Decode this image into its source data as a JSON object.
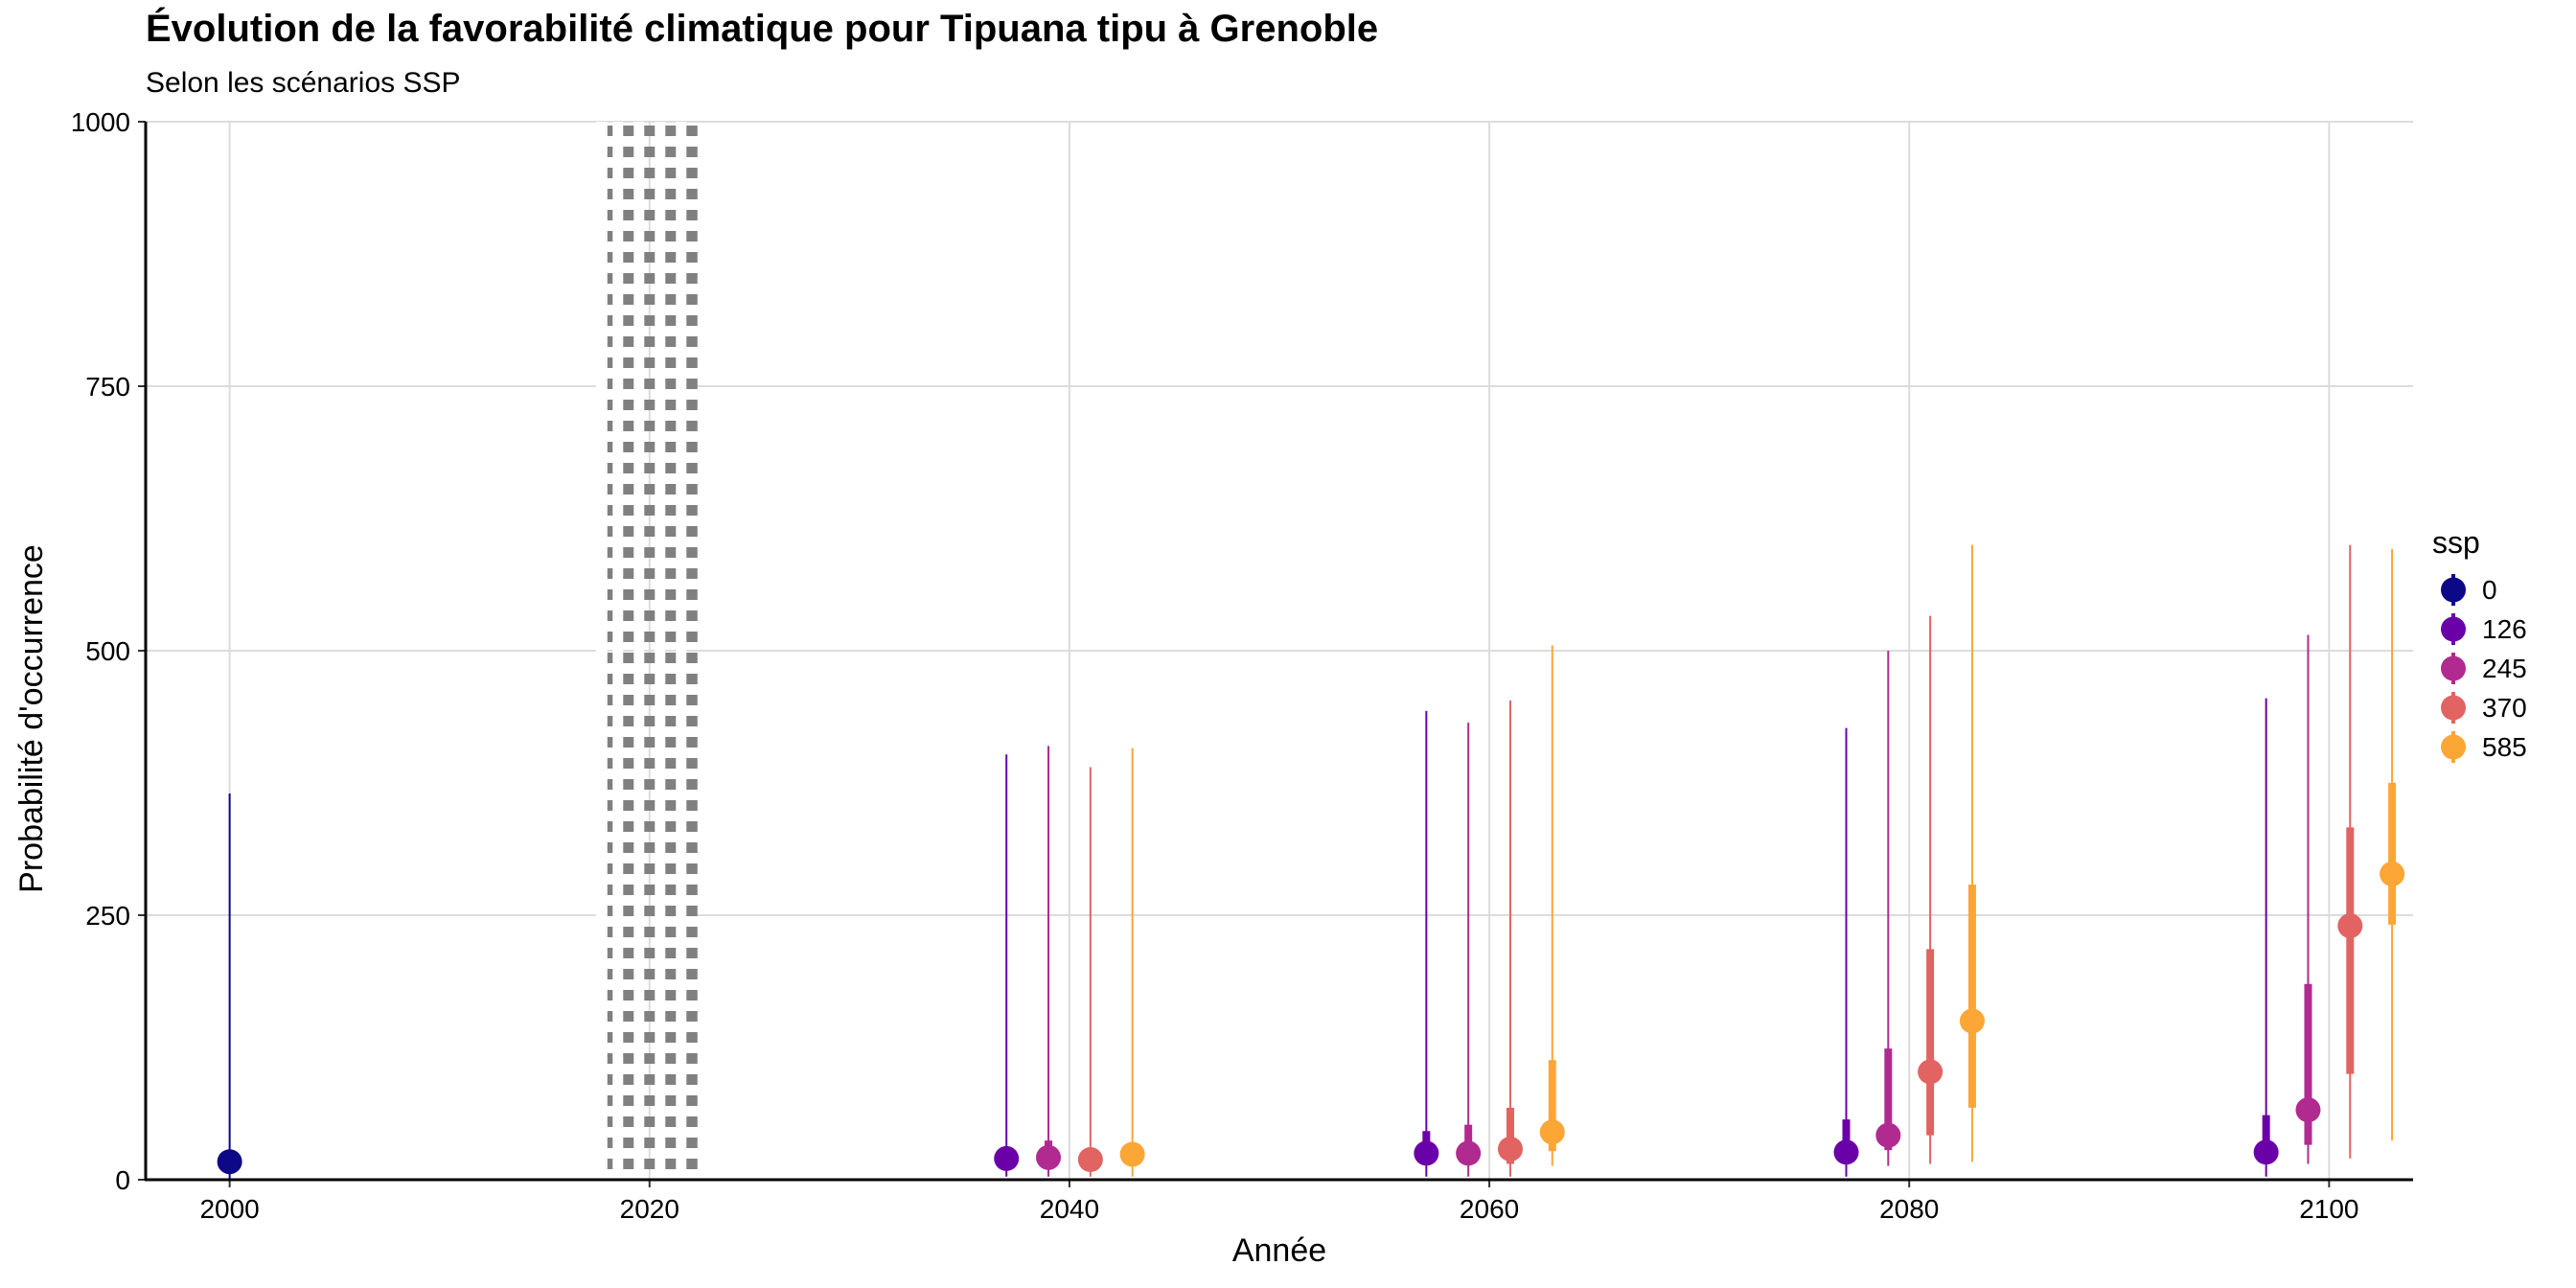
{
  "chart_data": {
    "type": "scatter",
    "title": "Évolution de la favorabilité climatique pour Tipuana tipu à Grenoble",
    "subtitle": "Selon les scénarios SSP",
    "xlabel": "Année",
    "ylabel": "Probabilité d'occurrence",
    "xlim": [
      1996,
      2104
    ],
    "ylim": [
      0,
      1000
    ],
    "x_ticks": [
      "2000",
      "2020",
      "2040",
      "2060",
      "2080",
      "2100"
    ],
    "y_ticks": [
      "0",
      "250",
      "500",
      "750",
      "1000"
    ],
    "grid": true,
    "reference_line": {
      "x": 2020,
      "style": "dotted",
      "color": "#808080"
    },
    "legend": {
      "title": "ssp",
      "placement": "right"
    },
    "series": [
      {
        "name": "0",
        "color": "#0D0887",
        "points": [
          {
            "x": 2000,
            "y": 17,
            "inner": [
              15,
              20
            ],
            "outer": [
              0,
              365
            ]
          }
        ]
      },
      {
        "name": "126",
        "color": "#6A00A8",
        "points": [
          {
            "x": 2037,
            "y": 20,
            "inner": [
              16,
              28
            ],
            "outer": [
              3,
              402
            ]
          },
          {
            "x": 2057,
            "y": 25,
            "inner": [
              14,
              46
            ],
            "outer": [
              3,
              443
            ]
          },
          {
            "x": 2077,
            "y": 26,
            "inner": [
              15,
              57
            ],
            "outer": [
              3,
              427
            ]
          },
          {
            "x": 2097,
            "y": 26,
            "inner": [
              15,
              61
            ],
            "outer": [
              3,
              455
            ]
          }
        ]
      },
      {
        "name": "245",
        "color": "#B12A90",
        "points": [
          {
            "x": 2039,
            "y": 21,
            "inner": [
              14,
              37
            ],
            "outer": [
              3,
              410
            ]
          },
          {
            "x": 2059,
            "y": 25,
            "inner": [
              14,
              52
            ],
            "outer": [
              3,
              432
            ]
          },
          {
            "x": 2079,
            "y": 42,
            "inner": [
              28,
              124
            ],
            "outer": [
              13,
              500
            ]
          },
          {
            "x": 2099,
            "y": 66,
            "inner": [
              33,
              185
            ],
            "outer": [
              15,
              515
            ]
          }
        ]
      },
      {
        "name": "370",
        "color": "#E16462",
        "points": [
          {
            "x": 2041,
            "y": 19,
            "inner": [
              14,
              26
            ],
            "outer": [
              3,
              390
            ]
          },
          {
            "x": 2061,
            "y": 29,
            "inner": [
              15,
              68
            ],
            "outer": [
              3,
              453
            ]
          },
          {
            "x": 2081,
            "y": 102,
            "inner": [
              42,
              218
            ],
            "outer": [
              15,
              533
            ]
          },
          {
            "x": 2101,
            "y": 240,
            "inner": [
              100,
              333
            ],
            "outer": [
              20,
              600
            ]
          }
        ]
      },
      {
        "name": "585",
        "color": "#FCA636",
        "points": [
          {
            "x": 2043,
            "y": 24,
            "inner": [
              15,
              35
            ],
            "outer": [
              3,
              408
            ]
          },
          {
            "x": 2063,
            "y": 45,
            "inner": [
              27,
              113
            ],
            "outer": [
              13,
              505
            ]
          },
          {
            "x": 2083,
            "y": 150,
            "inner": [
              68,
              279
            ],
            "outer": [
              17,
              600
            ]
          },
          {
            "x": 2103,
            "y": 289,
            "inner": [
              241,
              375
            ],
            "outer": [
              37,
              596
            ]
          }
        ]
      }
    ]
  }
}
